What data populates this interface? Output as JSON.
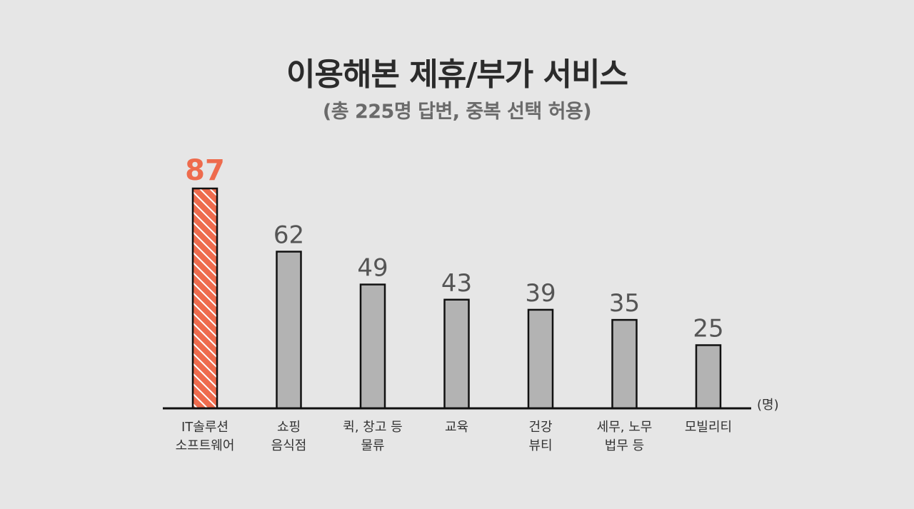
{
  "chart_data": {
    "type": "bar",
    "title": "이용해본 제휴/부가 서비스",
    "subtitle": "(총 225명 답변, 중복 선택 허용)",
    "unit": "(명)",
    "categories": [
      "IT솔루션\n소프트웨어",
      "쇼핑\n음식점",
      "퀵, 창고 등\n물류",
      "교육",
      "건강\n뷰티",
      "세무, 노무\n법무 등",
      "모빌리티"
    ],
    "values": [
      87,
      62,
      49,
      43,
      39,
      35,
      25
    ],
    "highlight_index": 0,
    "ylim": [
      0,
      87
    ],
    "colors": {
      "highlight": "#ee6b4d",
      "highlight_label": "#ee6b4d",
      "bar": "#b3b3b3",
      "label": "#555555",
      "axis": "#111111"
    }
  }
}
